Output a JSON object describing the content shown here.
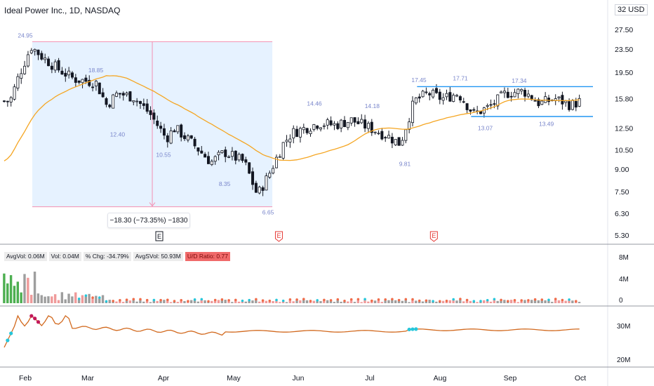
{
  "header": {
    "title": "Ideal Power Inc., 1D, NASDAQ",
    "currency": "32 USD"
  },
  "measure": {
    "label": "−18.30 (−73.35%) −1830"
  },
  "volume_stats": [
    {
      "label": "AvgVol: 0.06M"
    },
    {
      "label": "Vol: 0.04M"
    },
    {
      "label": "% Chg: -34.79%"
    },
    {
      "label": "AvgSVol: 50.93M"
    },
    {
      "label": "U/D Ratio: 0.77",
      "highlight": true
    }
  ],
  "volume_axis": [
    "8M",
    "4M",
    "0"
  ],
  "indicator_axis": [
    "30M",
    "20M"
  ],
  "events": [
    {
      "label": "E",
      "style": "box"
    },
    {
      "label": "E",
      "style": "earnings"
    },
    {
      "label": "E",
      "style": "earnings"
    }
  ],
  "colors": {
    "up_candle": "#ffffff",
    "down_candle": "#131722",
    "moving_average": "#f5a623",
    "level_line": "#2196f3",
    "measure_fill": "#ddeeff",
    "measure_border": "#f48fb1",
    "annotation_text": "#7986cb",
    "volume_green": "#4caf50",
    "volume_gray": "#9e9e9e",
    "volume_red": "#ef9a9a",
    "indicator_line": "#d2691e",
    "indicator_dot_pink": "#c2185b",
    "indicator_dot_cyan": "#26c6da"
  },
  "chart_data": {
    "type": "candlestick",
    "x_tick_labels": [
      "Feb",
      "Mar",
      "Apr",
      "May",
      "Jun",
      "Jul",
      "Aug",
      "Sep",
      "Oct"
    ],
    "y_tick_labels": [
      "27.50",
      "23.50",
      "19.50",
      "15.80",
      "12.50",
      "10.50",
      "9.00",
      "7.50",
      "6.30",
      "5.30"
    ],
    "y_scale": "log",
    "price_annotations": [
      "24.95",
      "18.85",
      "12.40",
      "10.55",
      "8.35",
      "6.65",
      "14.46",
      "14.18",
      "9.81",
      "17.45",
      "17.71",
      "17.34",
      "13.07",
      "13.49"
    ],
    "resistance_level": 17.4,
    "support_level": 13.7,
    "series": [
      {
        "name": "close",
        "points": [
          {
            "x": "Jan 25",
            "y": 15.5
          },
          {
            "x": "Jan 29",
            "y": 19.0
          },
          {
            "x": "Feb 04",
            "y": 24.0
          },
          {
            "x": "Feb 10",
            "y": 22.0
          },
          {
            "x": "Feb 18",
            "y": 20.0
          },
          {
            "x": "Feb 26",
            "y": 18.5
          },
          {
            "x": "Mar 04",
            "y": 18.0
          },
          {
            "x": "Mar 08",
            "y": 15.0
          },
          {
            "x": "Mar 12",
            "y": 16.5
          },
          {
            "x": "Mar 18",
            "y": 16.0
          },
          {
            "x": "Mar 24",
            "y": 14.0
          },
          {
            "x": "Mar 30",
            "y": 11.5
          },
          {
            "x": "Apr 06",
            "y": 12.5
          },
          {
            "x": "Apr 14",
            "y": 11.0
          },
          {
            "x": "Apr 22",
            "y": 9.5
          },
          {
            "x": "Apr 28",
            "y": 10.3
          },
          {
            "x": "May 06",
            "y": 9.5
          },
          {
            "x": "May 12",
            "y": 7.3
          },
          {
            "x": "May 17",
            "y": 8.5
          },
          {
            "x": "May 24",
            "y": 11.0
          },
          {
            "x": "May 28",
            "y": 12.0
          },
          {
            "x": "Jun 04",
            "y": 12.5
          },
          {
            "x": "Jun 10",
            "y": 13.0
          },
          {
            "x": "Jun 17",
            "y": 12.8
          },
          {
            "x": "Jun 24",
            "y": 13.3
          },
          {
            "x": "Jul 01",
            "y": 12.5
          },
          {
            "x": "Jul 08",
            "y": 11.8
          },
          {
            "x": "Jul 14",
            "y": 11.0
          },
          {
            "x": "Jul 20",
            "y": 15.5
          },
          {
            "x": "Jul 26",
            "y": 16.5
          },
          {
            "x": "Aug 02",
            "y": 15.8
          },
          {
            "x": "Aug 09",
            "y": 16.5
          },
          {
            "x": "Aug 16",
            "y": 14.0
          },
          {
            "x": "Aug 23",
            "y": 14.8
          },
          {
            "x": "Aug 30",
            "y": 16.5
          },
          {
            "x": "Sep 07",
            "y": 16.8
          },
          {
            "x": "Sep 14",
            "y": 15.2
          },
          {
            "x": "Sep 21",
            "y": 15.8
          },
          {
            "x": "Sep 28",
            "y": 15.0
          },
          {
            "x": "Oct 01",
            "y": 15.5
          }
        ]
      }
    ]
  }
}
